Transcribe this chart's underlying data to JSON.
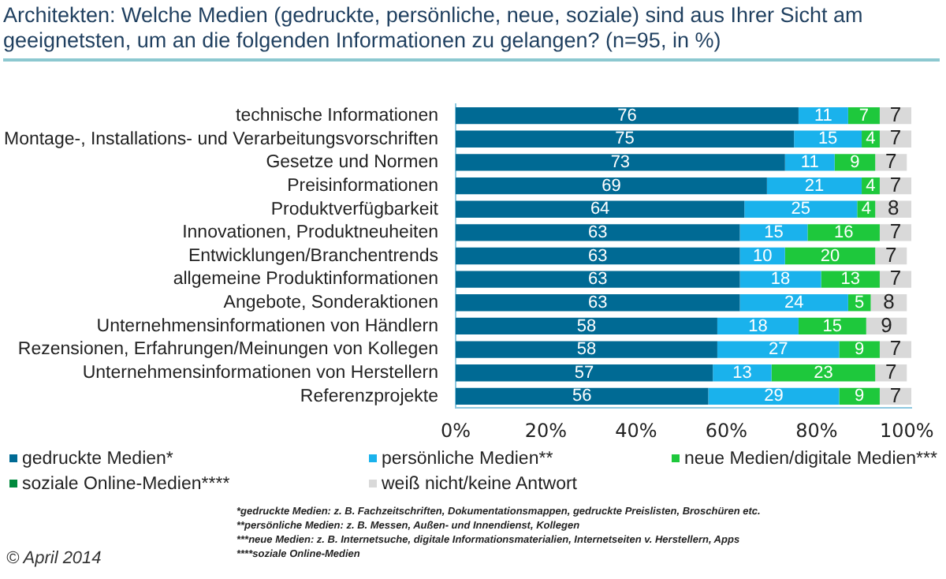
{
  "chart_data": {
    "type": "bar",
    "orientation": "horizontal",
    "stacked": true,
    "title": "Architekten: Welche Medien (gedruckte, persönliche, neue, soziale) sind aus Ihrer Sicht am geeignetsten, um an die folgenden Informationen zu gelangen? (n=95, in %)",
    "categories": [
      "technische Informationen",
      "Montage-, Installations- und Verarbeitungsvorschriften",
      "Gesetze und Normen",
      "Preisinformationen",
      "Produktverfügbarkeit",
      "Innovationen, Produktneuheiten",
      "Entwicklungen/Branchentrends",
      "allgemeine Produktinformationen",
      "Angebote, Sonderaktionen",
      "Unternehmensinformationen von Händlern",
      "Rezensionen, Erfahrungen/Meinungen von Kollegen",
      "Unternehmensinformationen von Herstellern",
      "Referenzprojekte"
    ],
    "series": [
      {
        "name": "gedruckte Medien*",
        "color": "#006a94",
        "values": [
          76,
          75,
          73,
          69,
          64,
          63,
          63,
          63,
          63,
          58,
          58,
          57,
          56
        ]
      },
      {
        "name": "persönliche Medien**",
        "color": "#1ab2ec",
        "values": [
          11,
          15,
          11,
          21,
          25,
          15,
          10,
          18,
          24,
          18,
          27,
          13,
          29
        ]
      },
      {
        "name": "neue Medien/digitale Medien***",
        "color": "#1ec83c",
        "values": [
          7,
          4,
          9,
          4,
          4,
          16,
          20,
          13,
          5,
          15,
          9,
          23,
          9
        ]
      },
      {
        "name": "soziale Online-Medien****",
        "color": "#00893c",
        "values": [
          null,
          null,
          null,
          null,
          null,
          null,
          null,
          null,
          null,
          null,
          null,
          null,
          null
        ]
      },
      {
        "name": "weiß nicht/keine Antwort",
        "color": "#d9d9d9",
        "values": [
          7,
          7,
          7,
          7,
          8,
          7,
          7,
          7,
          8,
          9,
          7,
          7,
          7
        ]
      }
    ],
    "xlim": [
      0,
      101
    ],
    "xticks": [
      {
        "value": 0,
        "label": "0%"
      },
      {
        "value": 20,
        "label": "20%"
      },
      {
        "value": 40,
        "label": "40%"
      },
      {
        "value": 60,
        "label": "60%"
      },
      {
        "value": 80,
        "label": "80%"
      },
      {
        "value": 100,
        "label": "100%"
      }
    ],
    "grid": false,
    "legend": "bottom",
    "data_labels": true,
    "annotations": [
      "*gedruckte Medien: z. B. Fachzeitschriften, Dokumentationsmappen, gedruckte Preislisten, Broschüren etc.",
      "**persönliche Medien: z. B. Messen, Außen- und Innendienst, Kollegen",
      "***neue Medien: z. B. Internetsuche, digitale Informationsmaterialien, Internetseiten v. Herstellern, Apps",
      "****soziale Online-Medien",
      "© April 2014"
    ]
  }
}
